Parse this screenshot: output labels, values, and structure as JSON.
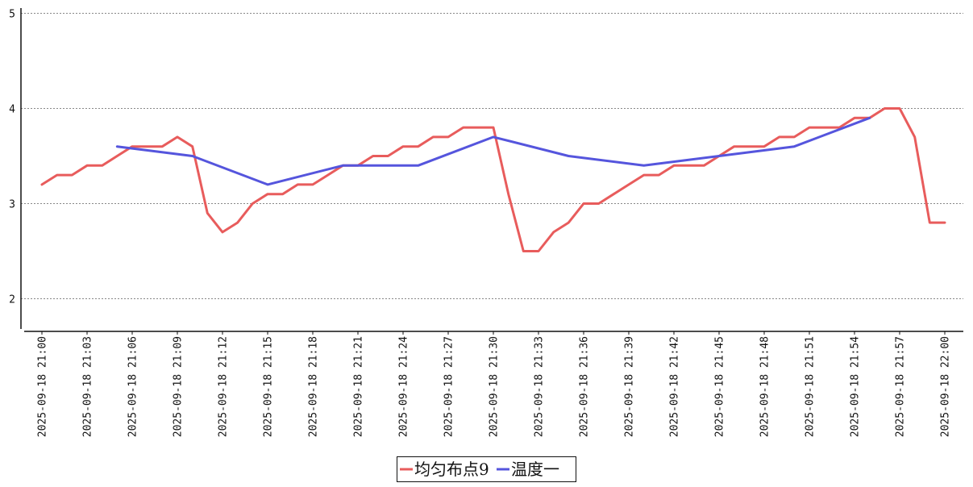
{
  "chart_data": {
    "type": "line",
    "title": "",
    "xlabel": "",
    "ylabel": "",
    "ylim": [
      1.7,
      5.1
    ],
    "yticks": [
      2,
      3,
      4,
      5
    ],
    "grid": "horizontal-dashed",
    "legend_position": "bottom-center",
    "x_tick_labels": [
      "2025-09-18  21:00",
      "2025-09-18  21:03",
      "2025-09-18  21:06",
      "2025-09-18  21:09",
      "2025-09-18  21:12",
      "2025-09-18  21:15",
      "2025-09-18  21:18",
      "2025-09-18  21:21",
      "2025-09-18  21:24",
      "2025-09-18  21:27",
      "2025-09-18  21:30",
      "2025-09-18  21:33",
      "2025-09-18  21:36",
      "2025-09-18  21:39",
      "2025-09-18  21:42",
      "2025-09-18  21:45",
      "2025-09-18  21:48",
      "2025-09-18  21:51",
      "2025-09-18  21:54",
      "2025-09-18  21:57",
      "2025-09-18  22:00"
    ],
    "series": [
      {
        "name": "均匀布点9",
        "color": "#e85c5c",
        "points": [
          [
            "21:00",
            3.2
          ],
          [
            "21:01",
            3.3
          ],
          [
            "21:02",
            3.3
          ],
          [
            "21:03",
            3.4
          ],
          [
            "21:04",
            3.4
          ],
          [
            "21:05",
            3.5
          ],
          [
            "21:06",
            3.6
          ],
          [
            "21:07",
            3.6
          ],
          [
            "21:08",
            3.6
          ],
          [
            "21:09",
            3.7
          ],
          [
            "21:10",
            3.6
          ],
          [
            "21:11",
            2.9
          ],
          [
            "21:12",
            2.7
          ],
          [
            "21:13",
            2.8
          ],
          [
            "21:14",
            3.0
          ],
          [
            "21:15",
            3.1
          ],
          [
            "21:16",
            3.1
          ],
          [
            "21:17",
            3.2
          ],
          [
            "21:18",
            3.2
          ],
          [
            "21:19",
            3.3
          ],
          [
            "21:20",
            3.4
          ],
          [
            "21:21",
            3.4
          ],
          [
            "21:22",
            3.5
          ],
          [
            "21:23",
            3.5
          ],
          [
            "21:24",
            3.6
          ],
          [
            "21:25",
            3.6
          ],
          [
            "21:26",
            3.7
          ],
          [
            "21:27",
            3.7
          ],
          [
            "21:28",
            3.8
          ],
          [
            "21:29",
            3.8
          ],
          [
            "21:30",
            3.8
          ],
          [
            "21:31",
            3.1
          ],
          [
            "21:32",
            2.5
          ],
          [
            "21:33",
            2.5
          ],
          [
            "21:34",
            2.7
          ],
          [
            "21:35",
            2.8
          ],
          [
            "21:36",
            3.0
          ],
          [
            "21:37",
            3.0
          ],
          [
            "21:38",
            3.1
          ],
          [
            "21:39",
            3.2
          ],
          [
            "21:40",
            3.3
          ],
          [
            "21:41",
            3.3
          ],
          [
            "21:42",
            3.4
          ],
          [
            "21:43",
            3.4
          ],
          [
            "21:44",
            3.4
          ],
          [
            "21:45",
            3.5
          ],
          [
            "21:46",
            3.6
          ],
          [
            "21:47",
            3.6
          ],
          [
            "21:48",
            3.6
          ],
          [
            "21:49",
            3.7
          ],
          [
            "21:50",
            3.7
          ],
          [
            "21:51",
            3.8
          ],
          [
            "21:52",
            3.8
          ],
          [
            "21:53",
            3.8
          ],
          [
            "21:54",
            3.9
          ],
          [
            "21:55",
            3.9
          ],
          [
            "21:56",
            4.0
          ],
          [
            "21:57",
            4.0
          ],
          [
            "21:58",
            3.7
          ],
          [
            "21:59",
            2.8
          ],
          [
            "22:00",
            2.8
          ]
        ]
      },
      {
        "name": "温度一",
        "color": "#5555dd",
        "points": [
          [
            "21:05",
            3.6
          ],
          [
            "21:10",
            3.5
          ],
          [
            "21:15",
            3.2
          ],
          [
            "21:20",
            3.4
          ],
          [
            "21:25",
            3.4
          ],
          [
            "21:30",
            3.7
          ],
          [
            "21:35",
            3.5
          ],
          [
            "21:40",
            3.4
          ],
          [
            "21:45",
            3.5
          ],
          [
            "21:50",
            3.6
          ],
          [
            "21:55",
            3.9
          ]
        ]
      }
    ]
  }
}
